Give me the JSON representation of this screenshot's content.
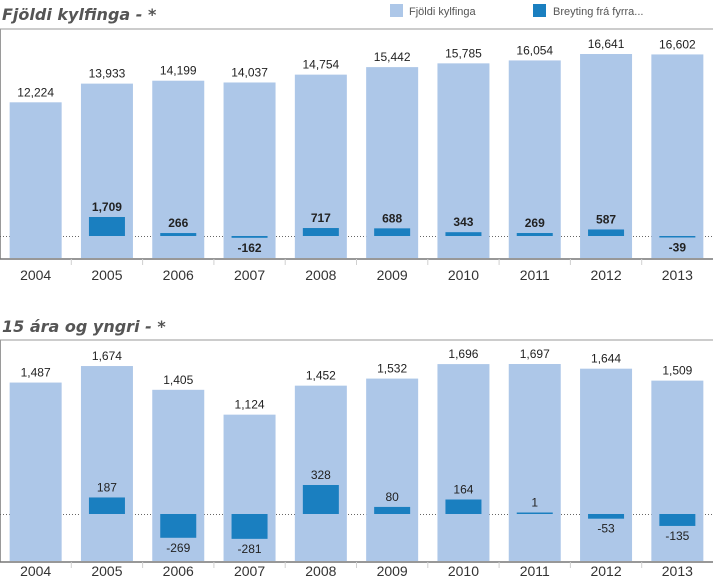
{
  "legend": {
    "total_label": "Fjöldi kylfinga",
    "change_label": "Breyting frá fyrra..."
  },
  "colors": {
    "total": "#adc7e8",
    "change": "#1a7fc0",
    "frame": "#9a9a9a",
    "divider": "#d0d0d0"
  },
  "chart_data": [
    {
      "type": "bar",
      "title": "Fjöldi kylfinga - *",
      "categories": [
        "2004",
        "2005",
        "2006",
        "2007",
        "2008",
        "2009",
        "2010",
        "2011",
        "2012",
        "2013"
      ],
      "series": [
        {
          "name": "Fjöldi kylfinga",
          "values": [
            12224,
            13933,
            14199,
            14037,
            14754,
            15442,
            15785,
            16054,
            16641,
            16602
          ],
          "labels": [
            "12,224",
            "13,933",
            "14,199",
            "14,037",
            "14,754",
            "15,442",
            "15,785",
            "16,054",
            "16,641",
            "16,602"
          ]
        },
        {
          "name": "Breyting frá fyrra...",
          "values": [
            null,
            1709,
            266,
            -162,
            717,
            688,
            343,
            269,
            587,
            -39
          ],
          "labels": [
            "",
            "1,709",
            "266",
            "-162",
            "717",
            "688",
            "343",
            "269",
            "587",
            "-39"
          ]
        }
      ],
      "change_labels_bold": true,
      "legend_position": "top-right",
      "grid": false
    },
    {
      "type": "bar",
      "title": "15 ára og yngri - *",
      "categories": [
        "2004",
        "2005",
        "2006",
        "2007",
        "2008",
        "2009",
        "2010",
        "2011",
        "2012",
        "2013"
      ],
      "series": [
        {
          "name": "Fjöldi kylfinga",
          "values": [
            1487,
            1674,
            1405,
            1124,
            1452,
            1532,
            1696,
            1697,
            1644,
            1509
          ],
          "labels": [
            "1,487",
            "1,674",
            "1,405",
            "1,124",
            "1,452",
            "1,532",
            "1,696",
            "1,697",
            "1,644",
            "1,509"
          ]
        },
        {
          "name": "Breyting frá fyrra...",
          "values": [
            null,
            187,
            -269,
            -281,
            328,
            80,
            164,
            1,
            -53,
            -135
          ],
          "labels": [
            "",
            "187",
            "-269",
            "-281",
            "328",
            "80",
            "164",
            "1",
            "-53",
            "-135"
          ]
        }
      ],
      "change_labels_bold": false,
      "grid": false
    }
  ]
}
